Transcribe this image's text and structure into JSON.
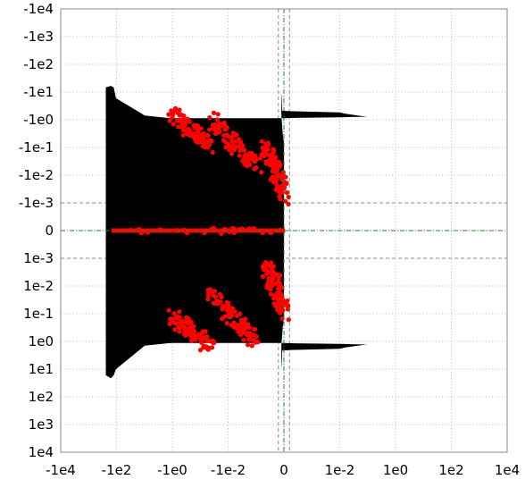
{
  "chart_data": {
    "type": "scatter",
    "title": "",
    "xlabel": "",
    "ylabel": "",
    "x_scale": "symlog",
    "y_scale": "symlog",
    "y_axis_inverted": true,
    "xlim": [
      -10000,
      10000
    ],
    "ylim": [
      -10000,
      10000
    ],
    "x_ticks": [
      -10000,
      -100,
      -1,
      -0.01,
      0,
      0.01,
      1,
      100,
      10000
    ],
    "x_tick_labels": [
      "-1e4",
      "-1e2",
      "-1e0",
      "-1e-2",
      "0",
      "1e-2",
      "1e0",
      "1e2",
      "1e4"
    ],
    "y_ticks": [
      -10000,
      -1000,
      -100,
      -10,
      -1,
      -0.1,
      -0.01,
      -0.001,
      0,
      0.001,
      0.01,
      0.1,
      1,
      10,
      100,
      1000,
      10000
    ],
    "y_tick_labels": [
      "-1e4",
      "-1e3",
      "-1e2",
      "-1e1",
      "-1e0",
      "-1e-1",
      "-1e-2",
      "-1e-3",
      "0",
      "1e-3",
      "1e-2",
      "1e-1",
      "1e0",
      "1e1",
      "1e2",
      "1e3",
      "1e4"
    ],
    "grid": true,
    "dashed_reference_lines_x": [
      -0.001,
      0.001
    ],
    "dashed_reference_lines_y": [
      -0.001,
      0.001
    ],
    "zero_lines": {
      "x": 0,
      "y": 0,
      "color": "#2f7f2f"
    },
    "series": [
      {
        "kind": "filled-region",
        "color": "#000000",
        "x_range": [
          -2000,
          0.5
        ],
        "y_range_at_left_edge": [
          -20,
          40
        ],
        "notes": "black filled region, symmetric about y=0, with wide lobes near y=±2 extending to x≈0.5"
      },
      {
        "kind": "points",
        "color": "#ff0000",
        "clusters": [
          {
            "x": [
              -1000,
              0.0002
            ],
            "y": [
              0,
              0
            ]
          },
          {
            "x": [
              -1.5,
              -0.3
            ],
            "y": [
              -3,
              -0.15
            ]
          },
          {
            "x": [
              -0.3,
              -0.005
            ],
            "y": [
              -1.0,
              -0.04
            ]
          },
          {
            "x": [
              -0.003,
              0.0002
            ],
            "y": [
              -0.1,
              -0.003
            ]
          },
          {
            "x": [
              -1.5,
              -0.3
            ],
            "y": [
              0.15,
              3
            ]
          },
          {
            "x": [
              -0.3,
              -0.005
            ],
            "y": [
              0.04,
              1.0
            ]
          },
          {
            "x": [
              -0.003,
              0.0002
            ],
            "y": [
              0.003,
              0.1
            ]
          }
        ]
      }
    ]
  }
}
